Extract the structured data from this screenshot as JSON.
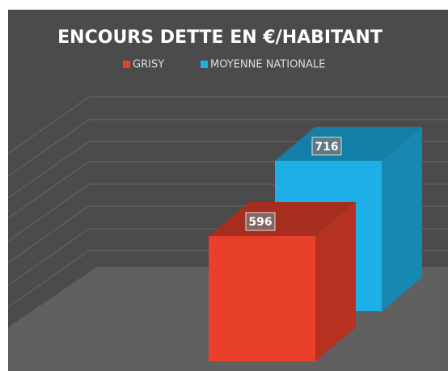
{
  "chart_data": {
    "type": "bar",
    "title": "ENCOURS DETTE EN €/HABITANT",
    "categories": [
      null
    ],
    "series": [
      {
        "name": "GRISY",
        "color": "#e8402a",
        "values": [
          596
        ]
      },
      {
        "name": "MOYENNE NATIONALE",
        "color": "#1cb0e6",
        "values": [
          716
        ]
      }
    ],
    "ylim": [
      0,
      900
    ]
  }
}
